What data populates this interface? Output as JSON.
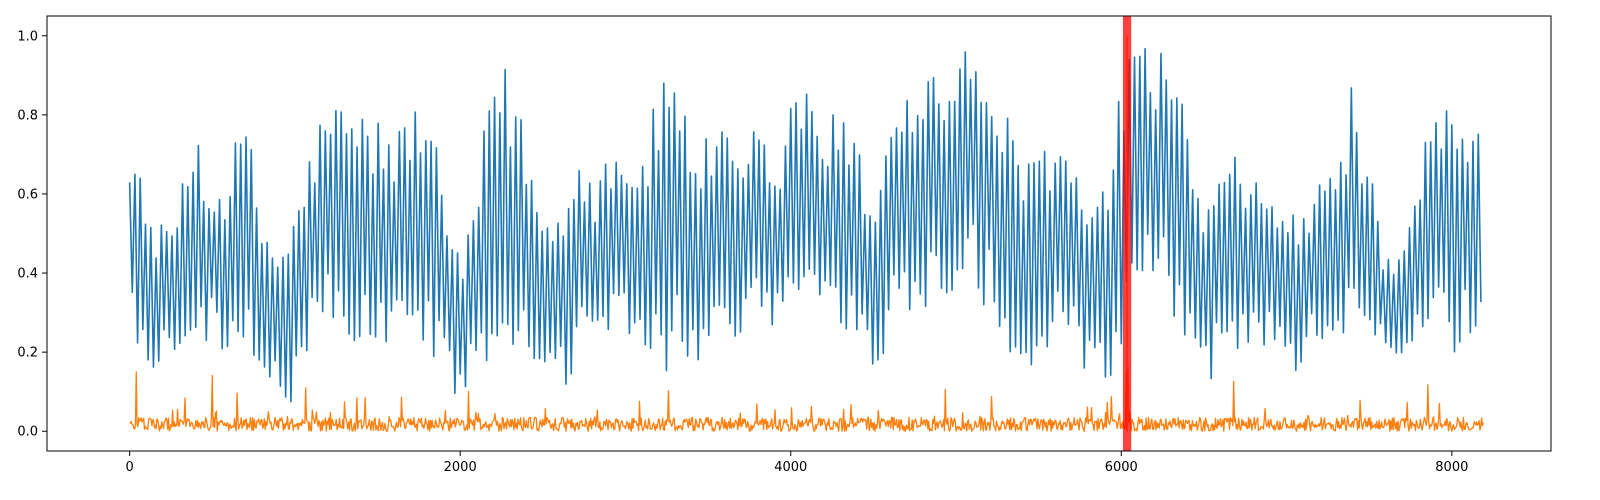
{
  "chart_data": {
    "type": "line",
    "title": "",
    "xlabel": "",
    "ylabel": "",
    "xlim": [
      -500,
      8600
    ],
    "ylim": [
      -0.05,
      1.05
    ],
    "x_ticks": [
      0,
      2000,
      4000,
      6000,
      8000
    ],
    "x_tick_labels": [
      "0",
      "2000",
      "4000",
      "6000",
      "8000"
    ],
    "y_ticks": [
      0.0,
      0.2,
      0.4,
      0.6,
      0.8,
      1.0
    ],
    "y_tick_labels": [
      "0.0",
      "0.2",
      "0.4",
      "0.6",
      "0.8",
      "1.0"
    ],
    "grid": false,
    "highlight_span": {
      "x_start": 6010,
      "x_end": 6060,
      "color": "#ff0000"
    },
    "series": [
      {
        "color": "#1f77b4",
        "x": [
          0,
          100,
          200,
          300,
          400,
          500,
          600,
          700,
          800,
          900,
          1000,
          1100,
          1200,
          1300,
          1400,
          1500,
          1600,
          1700,
          1800,
          1900,
          2000,
          2100,
          2200,
          2300,
          2400,
          2500,
          2600,
          2700,
          2800,
          2900,
          3000,
          3100,
          3200,
          3300,
          3400,
          3500,
          3600,
          3700,
          3800,
          3900,
          4000,
          4100,
          4200,
          4300,
          4400,
          4500,
          4600,
          4700,
          4800,
          4900,
          5000,
          5100,
          5200,
          5300,
          5400,
          5500,
          5600,
          5700,
          5800,
          5900,
          6000,
          6100,
          6200,
          6300,
          6400,
          6500,
          6600,
          6700,
          6800,
          6900,
          7000,
          7100,
          7200,
          7300,
          7400,
          7500,
          7600,
          7700,
          7800,
          7900,
          8000,
          8100,
          8190
        ],
        "y_high": [
          0.78,
          0.58,
          0.52,
          0.58,
          0.81,
          0.6,
          0.68,
          0.82,
          0.55,
          0.47,
          0.56,
          0.73,
          0.85,
          0.83,
          0.82,
          0.8,
          0.75,
          0.83,
          0.84,
          0.62,
          0.42,
          0.6,
          0.97,
          0.91,
          0.77,
          0.55,
          0.59,
          0.75,
          0.64,
          0.74,
          0.73,
          0.7,
          0.87,
          0.99,
          0.75,
          0.74,
          0.79,
          0.64,
          0.82,
          0.62,
          0.88,
          0.88,
          0.78,
          0.83,
          0.73,
          0.6,
          0.85,
          0.87,
          0.93,
          0.92,
          0.93,
          1.0,
          0.91,
          0.82,
          0.65,
          0.77,
          0.75,
          0.72,
          0.55,
          0.62,
          0.93,
          0.96,
          0.99,
          0.95,
          0.8,
          0.58,
          0.64,
          0.71,
          0.63,
          0.62,
          0.59,
          0.54,
          0.65,
          0.69,
          0.89,
          0.67,
          0.45,
          0.43,
          0.66,
          0.84,
          0.83,
          0.84,
          0.87
        ],
        "y_low": [
          0.22,
          0.12,
          0.16,
          0.22,
          0.16,
          0.24,
          0.18,
          0.18,
          0.14,
          0.08,
          0.06,
          0.22,
          0.28,
          0.24,
          0.2,
          0.16,
          0.22,
          0.26,
          0.2,
          0.1,
          0.08,
          0.16,
          0.12,
          0.14,
          0.16,
          0.1,
          0.06,
          0.16,
          0.18,
          0.22,
          0.22,
          0.2,
          0.1,
          0.18,
          0.16,
          0.2,
          0.24,
          0.18,
          0.26,
          0.24,
          0.3,
          0.28,
          0.24,
          0.26,
          0.2,
          0.1,
          0.22,
          0.28,
          0.3,
          0.28,
          0.34,
          0.36,
          0.3,
          0.2,
          0.1,
          0.16,
          0.22,
          0.18,
          0.12,
          0.08,
          0.1,
          0.32,
          0.36,
          0.28,
          0.18,
          0.1,
          0.16,
          0.12,
          0.22,
          0.2,
          0.16,
          0.14,
          0.24,
          0.2,
          0.2,
          0.26,
          0.16,
          0.14,
          0.18,
          0.22,
          0.2,
          0.18,
          0.34
        ]
      },
      {
        "color": "#ff7f0e",
        "x": [
          0,
          100,
          200,
          300,
          400,
          500,
          600,
          700,
          800,
          900,
          1000,
          1100,
          1200,
          1300,
          1400,
          1500,
          1600,
          1700,
          1800,
          1900,
          2000,
          2100,
          2200,
          2300,
          2400,
          2500,
          2600,
          2700,
          2800,
          2900,
          3000,
          3100,
          3200,
          3300,
          3400,
          3500,
          3600,
          3700,
          3800,
          3900,
          4000,
          4100,
          4200,
          4300,
          4400,
          4500,
          4600,
          4700,
          4800,
          4900,
          5000,
          5100,
          5200,
          5300,
          5400,
          5500,
          5600,
          5700,
          5800,
          5900,
          6000,
          6100,
          6200,
          6300,
          6400,
          6500,
          6600,
          6700,
          6800,
          6900,
          7000,
          7100,
          7200,
          7300,
          7400,
          7500,
          7600,
          7700,
          7800,
          7900,
          8000,
          8100,
          8190
        ],
        "y_high": [
          0.27,
          0.06,
          0.06,
          0.07,
          0.12,
          0.2,
          0.1,
          0.1,
          0.06,
          0.05,
          0.05,
          0.17,
          0.07,
          0.09,
          0.11,
          0.06,
          0.06,
          0.12,
          0.12,
          0.08,
          0.06,
          0.16,
          0.17,
          0.16,
          0.12,
          0.07,
          0.05,
          0.06,
          0.06,
          0.07,
          0.07,
          0.08,
          0.22,
          0.12,
          0.07,
          0.1,
          0.14,
          0.07,
          0.07,
          0.06,
          0.09,
          0.07,
          0.06,
          0.07,
          0.08,
          0.21,
          0.1,
          0.1,
          0.11,
          0.12,
          0.09,
          0.21,
          0.09,
          0.09,
          0.07,
          0.1,
          0.14,
          0.09,
          0.08,
          0.1,
          1.0,
          0.15,
          0.14,
          0.1,
          0.09,
          0.06,
          0.11,
          0.14,
          0.08,
          0.06,
          0.06,
          0.05,
          0.05,
          0.13,
          0.12,
          0.06,
          0.05,
          0.06,
          0.13,
          0.12,
          0.04,
          0.05,
          0.1
        ],
        "y_low": [
          0.0,
          0.0,
          0.0,
          0.0,
          0.0,
          0.0,
          0.0,
          0.0,
          0.0,
          0.0,
          0.0,
          0.0,
          0.0,
          0.0,
          0.0,
          0.0,
          0.0,
          0.0,
          0.0,
          0.0,
          0.0,
          0.0,
          0.0,
          0.0,
          0.0,
          0.0,
          0.0,
          0.0,
          0.0,
          0.0,
          0.0,
          0.0,
          0.0,
          0.0,
          0.0,
          0.0,
          0.0,
          0.0,
          0.0,
          0.0,
          0.0,
          0.0,
          0.0,
          0.0,
          0.0,
          0.0,
          0.0,
          0.0,
          0.0,
          0.0,
          0.0,
          0.0,
          0.0,
          0.0,
          0.0,
          0.0,
          0.0,
          0.0,
          0.0,
          0.0,
          0.0,
          0.0,
          0.0,
          0.0,
          0.0,
          0.0,
          0.0,
          0.0,
          0.0,
          0.0,
          0.0,
          0.0,
          0.0,
          0.0,
          0.0,
          0.0,
          0.0,
          0.0,
          0.0,
          0.0,
          0.0,
          0.0,
          0.0
        ]
      }
    ]
  }
}
